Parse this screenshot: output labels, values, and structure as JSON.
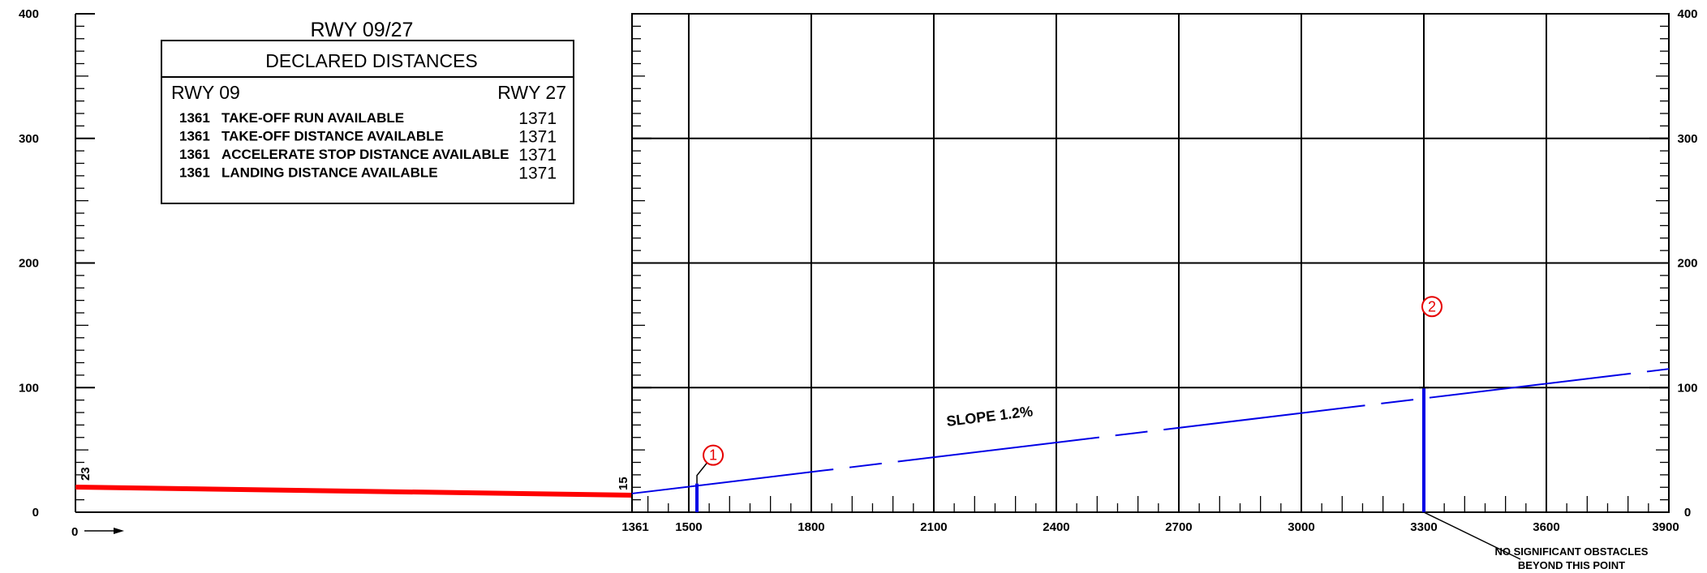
{
  "chart_data": {
    "type": "line",
    "title": "RWY 09/27",
    "table": {
      "heading": "DECLARED DISTANCES",
      "left_header": "RWY 09",
      "right_header": "RWY 27",
      "rows": [
        {
          "left": "1361",
          "label": "TAKE-OFF RUN AVAILABLE",
          "right": "1371"
        },
        {
          "left": "1361",
          "label": "TAKE-OFF DISTANCE AVAILABLE",
          "right": "1371"
        },
        {
          "left": "1361",
          "label": "ACCELERATE STOP DISTANCE AVAILABLE",
          "right": "1371"
        },
        {
          "left": "1361",
          "label": "LANDING DISTANCE AVAILABLE",
          "right": "1371"
        }
      ]
    },
    "origin_label": "0",
    "x_break_label": "1361",
    "x_ticks": [
      1500,
      1800,
      2100,
      2400,
      2700,
      3000,
      3300,
      3600,
      3900
    ],
    "y_ticks": [
      0,
      100,
      200,
      300,
      400
    ],
    "xlim": [
      1361,
      3900
    ],
    "ylim": [
      0,
      400
    ],
    "grid": true,
    "runway": {
      "start_elev": 23,
      "end_elev": 15,
      "start_label": "23",
      "end_label": "15"
    },
    "slope": {
      "label": "SLOPE 1.2%",
      "start": [
        1361,
        15
      ],
      "end": [
        3900,
        115
      ]
    },
    "obstacles": [
      {
        "id": "1",
        "x": 1520,
        "height": 23
      },
      {
        "id": "2",
        "x": 3300,
        "height": 100
      }
    ],
    "note_lines": [
      "NO SIGNIFICANT OBSTACLES",
      "BEYOND THIS POINT"
    ]
  }
}
